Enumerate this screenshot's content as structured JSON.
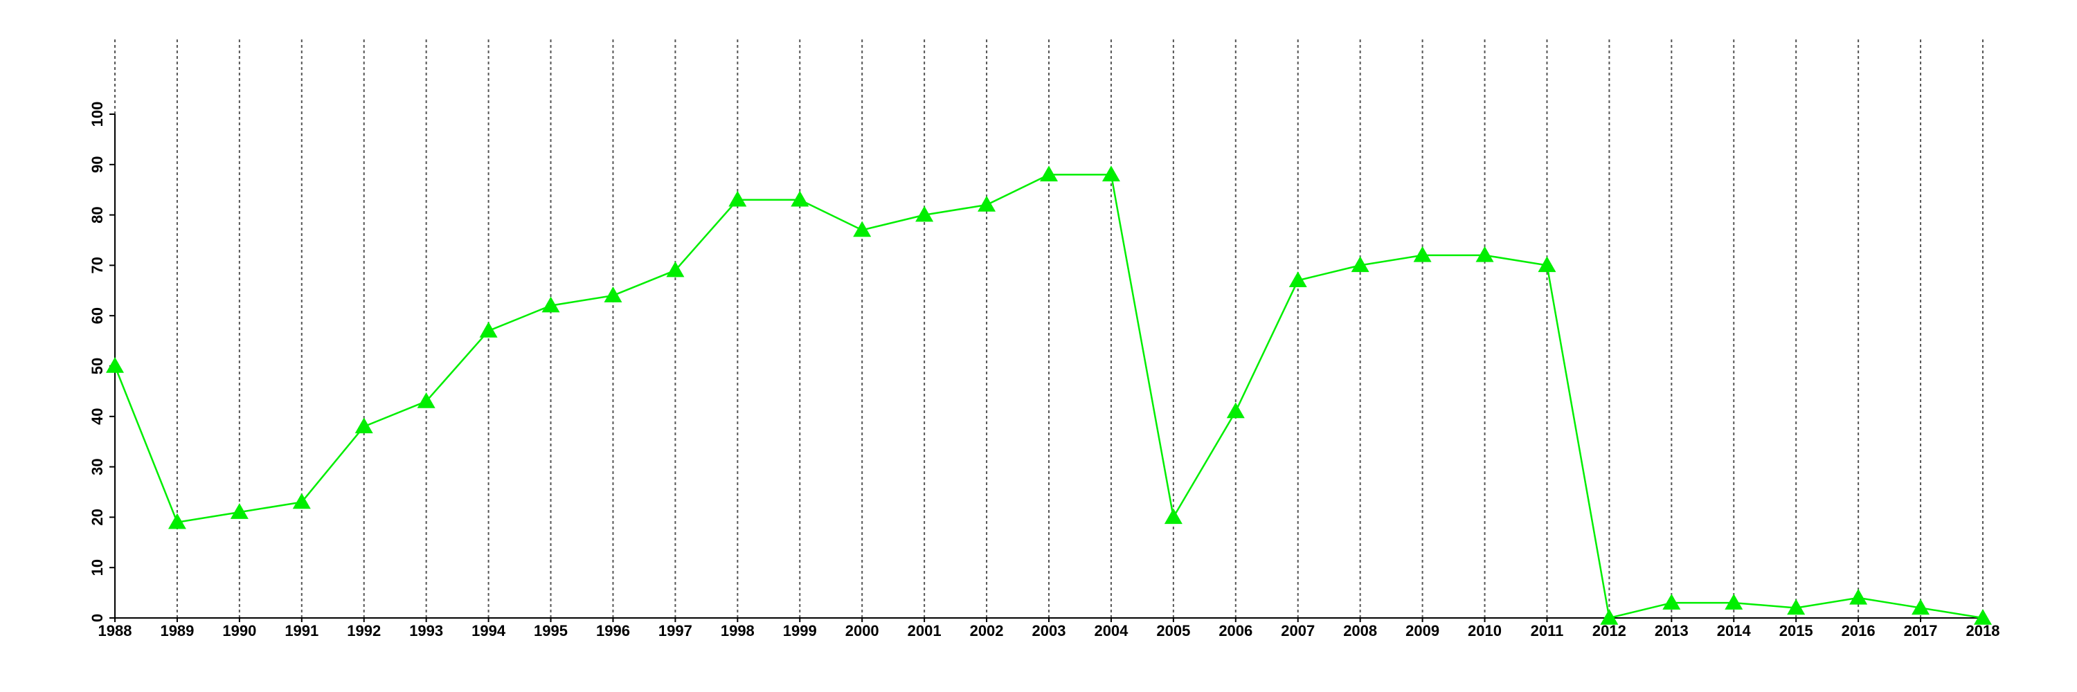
{
  "chart_data": {
    "type": "line",
    "marker": "triangle",
    "x": [
      1988,
      1989,
      1990,
      1991,
      1992,
      1993,
      1994,
      1995,
      1996,
      1997,
      1998,
      1999,
      2000,
      2001,
      2002,
      2003,
      2004,
      2005,
      2006,
      2007,
      2008,
      2009,
      2010,
      2011,
      2012,
      2013,
      2014,
      2015,
      2016,
      2017,
      2018
    ],
    "series": [
      {
        "color": "#00ee00",
        "values": [
          50,
          19,
          21,
          23,
          38,
          43,
          57,
          62,
          64,
          69,
          83,
          83,
          77,
          80,
          82,
          88,
          88,
          20,
          41,
          67,
          70,
          72,
          72,
          70,
          0,
          3,
          3,
          2,
          4,
          2,
          0
        ]
      }
    ],
    "xlim": [
      1988,
      2018
    ],
    "xticks": [
      1988,
      1989,
      1990,
      1991,
      1992,
      1993,
      1994,
      1995,
      1996,
      1997,
      1998,
      1999,
      2000,
      2001,
      2002,
      2003,
      2004,
      2005,
      2006,
      2007,
      2008,
      2009,
      2010,
      2011,
      2012,
      2013,
      2014,
      2015,
      2016,
      2017,
      2018
    ],
    "ylim": [
      0,
      100
    ],
    "yticks": [
      0,
      10,
      20,
      30,
      40,
      50,
      60,
      70,
      80,
      90,
      100
    ],
    "grid": true
  }
}
